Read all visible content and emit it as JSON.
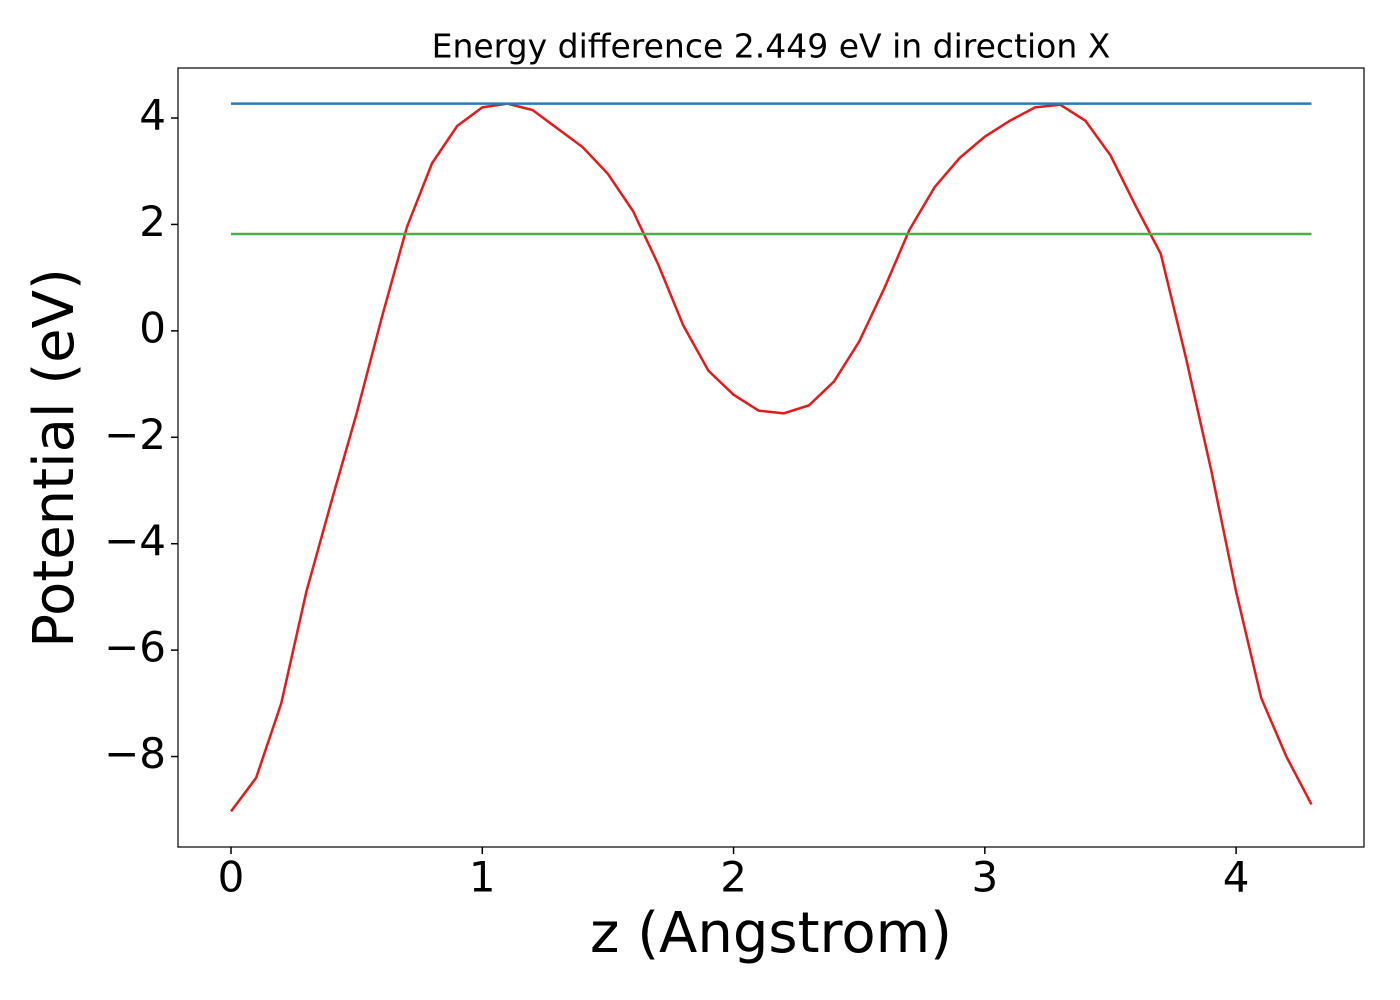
{
  "chart_data": {
    "type": "line",
    "title": "Energy difference 2.449 eV in direction X",
    "xlabel": "z (Angstrom)",
    "ylabel": "Potential (eV)",
    "xlim": [
      -0.211,
      4.509
    ],
    "ylim": [
      -9.7,
      4.94
    ],
    "xticks": [
      0,
      1,
      2,
      3,
      4
    ],
    "yticks": [
      {
        "value": -8,
        "label": "−8"
      },
      {
        "value": -6,
        "label": "−6"
      },
      {
        "value": -4,
        "label": "−4"
      },
      {
        "value": -2,
        "label": "−2"
      },
      0,
      2,
      4
    ],
    "grid": false,
    "series": [
      {
        "color": "#e41a1c",
        "x": [
          0,
          0.1,
          0.2,
          0.3,
          0.4,
          0.5,
          0.6,
          0.7,
          0.8,
          0.9,
          1.0,
          1.1,
          1.2,
          1.3,
          1.4,
          1.5,
          1.6,
          1.7,
          1.8,
          1.9,
          2.0,
          2.1,
          2.2,
          2.3,
          2.4,
          2.5,
          2.6,
          2.7,
          2.8,
          2.9,
          3.0,
          3.1,
          3.2,
          3.3,
          3.4,
          3.5,
          3.6,
          3.7,
          3.8,
          3.9,
          4.0,
          4.1,
          4.2,
          4.3
        ],
        "values": [
          -9.03,
          -8.4,
          -7.0,
          -4.9,
          -3.2,
          -1.55,
          0.25,
          1.95,
          3.15,
          3.85,
          4.2,
          4.27,
          4.15,
          3.8,
          3.45,
          2.95,
          2.25,
          1.25,
          0.1,
          -0.75,
          -1.2,
          -1.5,
          -1.55,
          -1.4,
          -0.95,
          -0.2,
          0.8,
          1.9,
          2.7,
          3.25,
          3.65,
          3.95,
          4.2,
          4.25,
          3.95,
          3.3,
          2.35,
          1.45,
          -0.5,
          -2.6,
          -4.9,
          -6.9,
          -8.0,
          -8.9
        ]
      },
      {
        "color": "#2b7bba",
        "x": [
          0,
          4.3
        ],
        "values": [
          4.27,
          4.27
        ]
      },
      {
        "color": "#4daf4a",
        "x": [
          0,
          4.3
        ],
        "values": [
          1.82,
          1.82
        ]
      }
    ]
  }
}
